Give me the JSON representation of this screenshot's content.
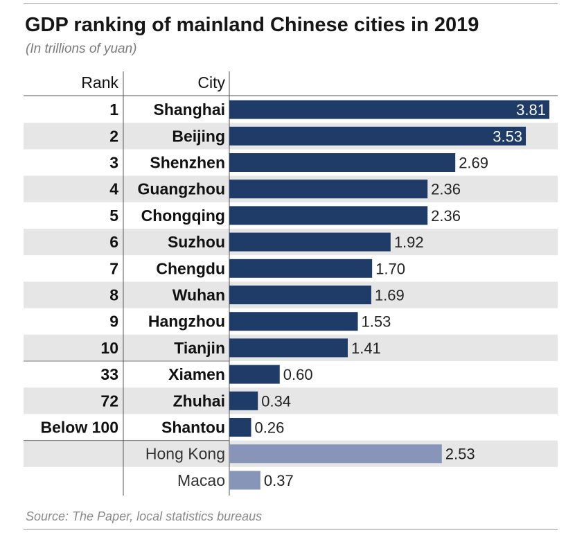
{
  "header": {
    "title": "GDP ranking of mainland Chinese cities in 2019",
    "subtitle": "(In trillions of yuan)"
  },
  "footer": {
    "source": "Source: The Paper, local statistics bureaus"
  },
  "colors": {
    "mainland_bar": "#1f3c68",
    "sar_bar": "#8795b8",
    "stripe": "#e6e6e6",
    "label_inside": "#ffffff",
    "label_outside": "#222222"
  },
  "chart_data": {
    "type": "bar",
    "orientation": "horizontal",
    "columns": {
      "rank": "Rank",
      "city": "City"
    },
    "rows": [
      {
        "rank": "1",
        "city": "Shanghai",
        "value": 3.81,
        "group": "mainland"
      },
      {
        "rank": "2",
        "city": "Beijing",
        "value": 3.53,
        "group": "mainland"
      },
      {
        "rank": "3",
        "city": "Shenzhen",
        "value": 2.69,
        "group": "mainland"
      },
      {
        "rank": "4",
        "city": "Guangzhou",
        "value": 2.36,
        "group": "mainland"
      },
      {
        "rank": "5",
        "city": "Chongqing",
        "value": 2.36,
        "group": "mainland"
      },
      {
        "rank": "6",
        "city": "Suzhou",
        "value": 1.92,
        "group": "mainland"
      },
      {
        "rank": "7",
        "city": "Chengdu",
        "value": 1.7,
        "group": "mainland"
      },
      {
        "rank": "8",
        "city": "Wuhan",
        "value": 1.69,
        "group": "mainland"
      },
      {
        "rank": "9",
        "city": "Hangzhou",
        "value": 1.53,
        "group": "mainland"
      },
      {
        "rank": "10",
        "city": "Tianjin",
        "value": 1.41,
        "group": "mainland"
      },
      {
        "rank": "33",
        "city": "Xiamen",
        "value": 0.6,
        "group": "mainland"
      },
      {
        "rank": "72",
        "city": "Zhuhai",
        "value": 0.34,
        "group": "mainland"
      },
      {
        "rank": "Below 100",
        "city": "Shantou",
        "value": 0.26,
        "group": "mainland"
      },
      {
        "rank": "",
        "city": "Hong Kong",
        "value": 2.53,
        "group": "sar"
      },
      {
        "rank": "",
        "city": "Macao",
        "value": 0.37,
        "group": "sar"
      }
    ],
    "value_labels": [
      "3.81",
      "3.53",
      "2.69",
      "2.36",
      "2.36",
      "1.92",
      "1.70",
      "1.69",
      "1.53",
      "1.41",
      "0.60",
      "0.34",
      "0.26",
      "2.53",
      "0.37"
    ],
    "xlim": [
      0,
      3.81
    ],
    "grid": false,
    "legend": "none"
  }
}
